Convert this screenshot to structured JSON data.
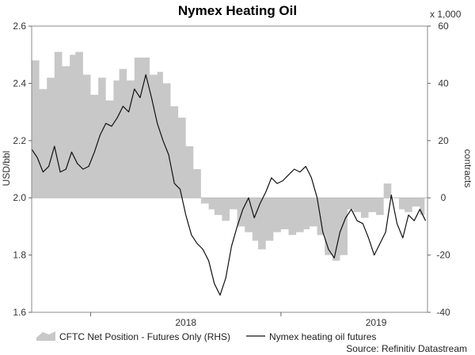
{
  "chart_data": {
    "type": "line",
    "title": "Nymex Heating Oil",
    "source": "Source: Refinitiv Datastream",
    "left_axis": {
      "label": "USD/bbl",
      "ylim": [
        1.6,
        2.6
      ],
      "ticks": [
        "1.6",
        "1.8",
        "2.0",
        "2.2",
        "2.4",
        "2.6"
      ]
    },
    "right_axis": {
      "label": "contracts",
      "multiplier": "x 1,000",
      "ylim": [
        -40,
        60
      ],
      "ticks": [
        "-40",
        "-20",
        "0",
        "20",
        "40",
        "60"
      ]
    },
    "x_axis": {
      "range": [
        "2017-09",
        "2019-10"
      ],
      "ticks": [
        "2018",
        "2019"
      ]
    },
    "grid": false,
    "legend_position": "bottom",
    "series": [
      {
        "name": "CFTC Net Position - Futures Only (RHS)",
        "kind": "area",
        "axis": "right",
        "color": "#c8c8c8",
        "x": [
          2017.69,
          2017.73,
          2017.77,
          2017.81,
          2017.85,
          2017.89,
          2017.92,
          2017.96,
          2018.0,
          2018.04,
          2018.08,
          2018.12,
          2018.15,
          2018.19,
          2018.23,
          2018.27,
          2018.31,
          2018.35,
          2018.38,
          2018.42,
          2018.46,
          2018.5,
          2018.54,
          2018.58,
          2018.62,
          2018.65,
          2018.69,
          2018.73,
          2018.77,
          2018.81,
          2018.85,
          2018.88,
          2018.92,
          2018.96,
          2019.0,
          2019.04,
          2019.08,
          2019.12,
          2019.15,
          2019.19,
          2019.23,
          2019.27,
          2019.31,
          2019.35,
          2019.38,
          2019.42,
          2019.46,
          2019.5,
          2019.54,
          2019.58,
          2019.62,
          2019.65,
          2019.69,
          2019.73
        ],
        "values": [
          48,
          38,
          42,
          51,
          46,
          50,
          51,
          43,
          36,
          42,
          34,
          41,
          45,
          41,
          49,
          49,
          43,
          44,
          40,
          32,
          28,
          18,
          10,
          -2,
          -4,
          -6,
          -8,
          -4,
          -10,
          -12,
          -15,
          -18,
          -15,
          -12,
          -11,
          -13,
          -12,
          -11,
          -10,
          -13,
          -20,
          -22,
          -20,
          -4,
          -5,
          -7,
          -5,
          -6,
          5,
          0,
          -4,
          -5,
          -3,
          -6
        ],
        "stroke": "none"
      },
      {
        "name": "Nymex heating oil futures",
        "kind": "line",
        "axis": "left",
        "color": "#111111",
        "x": [
          2017.69,
          2017.72,
          2017.75,
          2017.78,
          2017.81,
          2017.84,
          2017.87,
          2017.9,
          2017.93,
          2017.96,
          2017.99,
          2018.02,
          2018.05,
          2018.08,
          2018.11,
          2018.14,
          2018.17,
          2018.2,
          2018.23,
          2018.26,
          2018.29,
          2018.32,
          2018.35,
          2018.38,
          2018.41,
          2018.44,
          2018.47,
          2018.5,
          2018.53,
          2018.56,
          2018.59,
          2018.62,
          2018.65,
          2018.68,
          2018.71,
          2018.74,
          2018.77,
          2018.8,
          2018.83,
          2018.86,
          2018.89,
          2018.92,
          2018.95,
          2018.98,
          2019.01,
          2019.04,
          2019.07,
          2019.1,
          2019.13,
          2019.16,
          2019.19,
          2019.22,
          2019.25,
          2019.28,
          2019.31,
          2019.34,
          2019.37,
          2019.4,
          2019.43,
          2019.46,
          2019.49,
          2019.52,
          2019.55,
          2019.58,
          2019.61,
          2019.64,
          2019.67,
          2019.7,
          2019.73,
          2019.76
        ],
        "values": [
          2.17,
          2.14,
          2.09,
          2.11,
          2.18,
          2.09,
          2.1,
          2.16,
          2.12,
          2.1,
          2.11,
          2.16,
          2.22,
          2.26,
          2.25,
          2.28,
          2.32,
          2.3,
          2.38,
          2.35,
          2.43,
          2.35,
          2.26,
          2.2,
          2.15,
          2.05,
          2.03,
          1.94,
          1.87,
          1.84,
          1.82,
          1.78,
          1.7,
          1.66,
          1.72,
          1.83,
          1.9,
          1.96,
          2.0,
          1.93,
          1.98,
          2.02,
          2.07,
          2.05,
          2.06,
          2.08,
          2.1,
          2.09,
          2.11,
          2.07,
          2.0,
          1.88,
          1.82,
          1.79,
          1.88,
          1.93,
          1.96,
          1.92,
          1.91,
          1.86,
          1.8,
          1.84,
          1.88,
          2.01,
          1.91,
          1.86,
          1.94,
          1.92,
          1.96,
          1.92
        ]
      }
    ]
  }
}
